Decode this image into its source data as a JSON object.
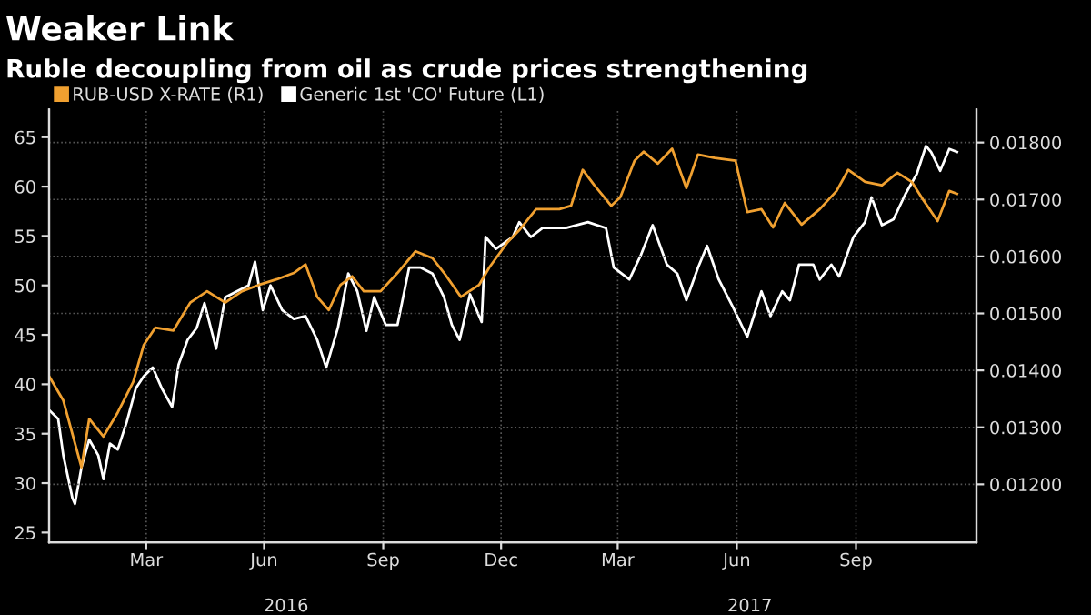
{
  "chart_data": {
    "type": "line",
    "title": "Weaker Link",
    "subtitle": "Ruble decoupling from oil as crude prices strengthening",
    "series": [
      {
        "name": "RUB-USD X-RATE (R1)",
        "color": "#f0a030",
        "axis": "y2",
        "x": [
          "2016-01-01",
          "2016-01-12",
          "2016-01-21",
          "2016-01-26",
          "2016-02-01",
          "2016-02-12",
          "2016-02-23",
          "2016-03-06",
          "2016-03-14",
          "2016-03-23",
          "2016-04-06",
          "2016-04-19",
          "2016-05-02",
          "2016-05-16",
          "2016-05-29",
          "2016-06-11",
          "2016-06-25",
          "2016-07-08",
          "2016-07-17",
          "2016-07-26",
          "2016-08-04",
          "2016-08-13",
          "2016-08-22",
          "2016-08-31",
          "2016-09-13",
          "2016-09-26",
          "2016-10-10",
          "2016-10-23",
          "2016-11-01",
          "2016-11-14",
          "2016-11-28",
          "2016-12-06",
          "2016-12-20",
          "2016-12-29",
          "2017-01-11",
          "2017-01-29",
          "2017-02-07",
          "2017-02-16",
          "2017-02-25",
          "2017-03-10",
          "2017-03-17",
          "2017-03-28",
          "2017-04-04",
          "2017-04-15",
          "2017-04-26",
          "2017-05-07",
          "2017-05-16",
          "2017-05-29",
          "2017-06-14",
          "2017-06-23",
          "2017-07-04",
          "2017-07-13",
          "2017-07-22",
          "2017-08-04",
          "2017-08-18",
          "2017-08-31",
          "2017-09-09",
          "2017-09-22",
          "2017-10-05",
          "2017-10-17",
          "2017-10-28",
          "2017-11-06",
          "2017-11-17",
          "2017-11-26",
          "2017-12-02"
        ],
        "values": [
          0.0139,
          0.01347,
          0.01272,
          0.0123,
          0.01315,
          0.01284,
          0.01326,
          0.0138,
          0.01444,
          0.01475,
          0.0147,
          0.01519,
          0.01539,
          0.01519,
          0.01539,
          0.0155,
          0.0156,
          0.01571,
          0.01586,
          0.01529,
          0.01506,
          0.0155,
          0.01565,
          0.01539,
          0.01539,
          0.01571,
          0.01609,
          0.01597,
          0.01571,
          0.01529,
          0.0155,
          0.01581,
          0.01625,
          0.01646,
          0.01683,
          0.01683,
          0.01689,
          0.01752,
          0.01725,
          0.01689,
          0.01704,
          0.01768,
          0.01784,
          0.01763,
          0.01789,
          0.0172,
          0.01779,
          0.01773,
          0.01768,
          0.01678,
          0.01683,
          0.01651,
          0.01694,
          0.01656,
          0.01683,
          0.01715,
          0.01752,
          0.01731,
          0.01725,
          0.01747,
          0.01731,
          0.01699,
          0.01662,
          0.01715,
          0.0171
        ]
      },
      {
        "name": "Generic 1st 'CO' Future (L1)",
        "color": "#ffffff",
        "x": [
          "2016-01-01",
          "2016-01-08",
          "2016-01-12",
          "2016-01-19",
          "2016-01-21",
          "2016-01-26",
          "2016-02-01",
          "2016-02-08",
          "2016-02-12",
          "2016-02-17",
          "2016-02-23",
          "2016-03-01",
          "2016-03-08",
          "2016-03-14",
          "2016-03-21",
          "2016-03-28",
          "2016-04-05",
          "2016-04-10",
          "2016-04-17",
          "2016-04-24",
          "2016-04-30",
          "2016-05-09",
          "2016-05-16",
          "2016-05-25",
          "2016-06-03",
          "2016-06-08",
          "2016-06-14",
          "2016-06-20",
          "2016-06-29",
          "2016-07-08",
          "2016-07-17",
          "2016-07-26",
          "2016-08-02",
          "2016-08-11",
          "2016-08-19",
          "2016-08-26",
          "2016-09-02",
          "2016-09-08",
          "2016-09-17",
          "2016-09-26",
          "2016-10-05",
          "2016-10-14",
          "2016-10-23",
          "2016-11-01",
          "2016-11-07",
          "2016-11-13",
          "2016-11-21",
          "2016-11-30",
          "2016-12-03",
          "2016-12-11",
          "2016-12-24",
          "2016-12-29",
          "2017-01-07",
          "2017-01-16",
          "2017-02-03",
          "2017-02-20",
          "2017-03-06",
          "2017-03-12",
          "2017-03-24",
          "2017-04-02",
          "2017-04-11",
          "2017-04-22",
          "2017-04-30",
          "2017-05-07",
          "2017-05-16",
          "2017-05-23",
          "2017-06-01",
          "2017-06-12",
          "2017-06-23",
          "2017-07-04",
          "2017-07-11",
          "2017-07-20",
          "2017-07-26",
          "2017-08-02",
          "2017-08-13",
          "2017-08-18",
          "2017-08-27",
          "2017-09-02",
          "2017-09-13",
          "2017-09-22",
          "2017-09-27",
          "2017-10-05",
          "2017-10-14",
          "2017-10-23",
          "2017-11-01",
          "2017-11-08",
          "2017-11-12",
          "2017-11-19",
          "2017-11-26",
          "2017-12-02"
        ],
        "values": [
          37.4,
          36.5,
          32.8,
          28.5,
          27.9,
          31.6,
          34.4,
          32.8,
          30.4,
          34,
          33.4,
          36.2,
          39.6,
          40.8,
          41.7,
          39.6,
          37.7,
          42,
          44.5,
          45.7,
          48.2,
          43.6,
          48.8,
          49.4,
          50,
          52.4,
          47.5,
          50,
          47.5,
          46.6,
          46.9,
          44.5,
          41.7,
          45.7,
          51.2,
          49.4,
          45.4,
          48.8,
          46,
          46,
          51.8,
          51.8,
          51.2,
          48.8,
          46,
          44.5,
          49.1,
          46.3,
          54.9,
          53.7,
          54.9,
          56.4,
          54.9,
          55.8,
          55.8,
          56.4,
          55.8,
          51.8,
          50.6,
          53.1,
          56.1,
          52.1,
          51.2,
          48.5,
          51.8,
          54,
          50.6,
          47.8,
          44.8,
          49.4,
          46.9,
          49.4,
          48.5,
          52.1,
          52.1,
          50.6,
          52.1,
          50.9,
          54.9,
          56.4,
          58.9,
          56.1,
          56.7,
          59.2,
          61.3,
          64.1,
          63.5,
          61.6,
          63.8,
          63.5
        ]
      }
    ],
    "xlim": [
      "2016-01-01",
      "2017-12-17"
    ],
    "xticks": [
      {
        "value": "2016-03-16",
        "label": "Mar"
      },
      {
        "value": "2016-06-15",
        "label": "Jun"
      },
      {
        "value": "2016-09-15",
        "label": "Sep"
      },
      {
        "value": "2016-12-15",
        "label": "Dec"
      },
      {
        "value": "2017-03-15",
        "label": "Mar"
      },
      {
        "value": "2017-06-15",
        "label": "Jun"
      },
      {
        "value": "2017-09-15",
        "label": "Sep"
      }
    ],
    "annotations": [
      "2016",
      "2017"
    ],
    "ylim": [
      24,
      67.8
    ],
    "yticks": [
      25,
      30,
      35,
      40,
      45,
      50,
      55,
      60,
      65
    ],
    "y2lim": [
      0.01098,
      0.01858
    ],
    "y2ticks": [
      {
        "value": 0.012,
        "label": "0.01200"
      },
      {
        "value": 0.013,
        "label": "0.01300"
      },
      {
        "value": 0.014,
        "label": "0.01400"
      },
      {
        "value": 0.015,
        "label": "0.01500"
      },
      {
        "value": 0.016,
        "label": "0.01600"
      },
      {
        "value": 0.017,
        "label": "0.01700"
      },
      {
        "value": 0.018,
        "label": "0.01800"
      }
    ],
    "grid": true,
    "legend": "top left",
    "line_style": "solid",
    "marker": "none"
  }
}
